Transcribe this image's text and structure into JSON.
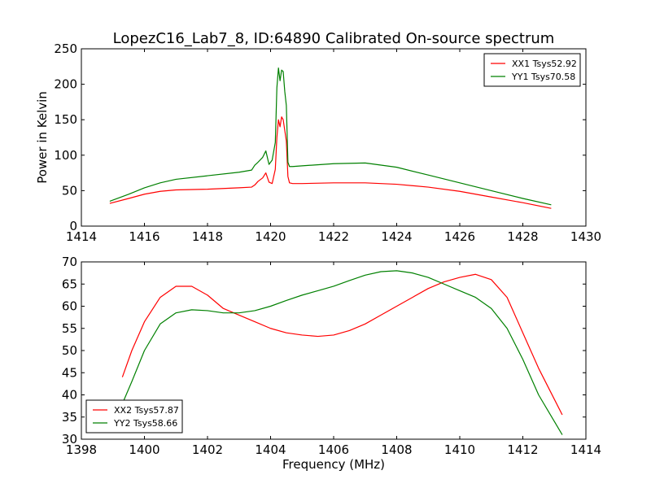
{
  "figure": {
    "title": "LopezC16_Lab7_8, ID:64890 Calibrated On-source spectrum",
    "ylabel": "Power in Kelvin",
    "xlabel": "Frequency (MHz)"
  },
  "colors": {
    "red": "#ff0000",
    "green": "#008000"
  },
  "chart_data": [
    {
      "type": "line",
      "xlim": [
        1414,
        1430
      ],
      "ylim": [
        0,
        250
      ],
      "xticks": [
        1414,
        1416,
        1418,
        1420,
        1422,
        1424,
        1426,
        1428,
        1430
      ],
      "yticks": [
        0,
        50,
        100,
        150,
        200,
        250
      ],
      "legend_position": "top-right",
      "series": [
        {
          "name": "XX1 Tsys52.92",
          "color": "#ff0000",
          "x": [
            1414.9,
            1415.5,
            1416.0,
            1416.5,
            1417.0,
            1418.0,
            1419.0,
            1419.4,
            1419.5,
            1419.6,
            1419.75,
            1419.85,
            1419.95,
            1420.05,
            1420.15,
            1420.2,
            1420.25,
            1420.3,
            1420.35,
            1420.4,
            1420.45,
            1420.5,
            1420.55,
            1420.6,
            1420.7,
            1421.0,
            1422.0,
            1423.0,
            1424.0,
            1425.0,
            1426.0,
            1427.0,
            1428.0,
            1428.9
          ],
          "y": [
            32,
            39,
            45,
            49,
            51,
            52,
            54,
            55,
            58,
            63,
            68,
            75,
            62,
            60,
            80,
            125,
            150,
            140,
            154,
            150,
            135,
            120,
            70,
            61,
            60,
            60,
            61,
            61,
            59,
            55,
            49,
            41,
            33,
            25
          ]
        },
        {
          "name": "YY1 Tsys70.58",
          "color": "#008000",
          "x": [
            1414.9,
            1415.5,
            1416.0,
            1416.5,
            1417.0,
            1418.0,
            1419.0,
            1419.4,
            1419.5,
            1419.6,
            1419.75,
            1419.85,
            1419.95,
            1420.05,
            1420.15,
            1420.2,
            1420.25,
            1420.3,
            1420.35,
            1420.4,
            1420.45,
            1420.5,
            1420.55,
            1420.6,
            1420.7,
            1421.0,
            1422.0,
            1423.0,
            1424.0,
            1425.0,
            1426.0,
            1427.0,
            1428.0,
            1428.9
          ],
          "y": [
            35,
            45,
            54,
            61,
            66,
            71,
            76,
            79,
            86,
            90,
            97,
            106,
            87,
            93,
            118,
            195,
            223,
            205,
            220,
            218,
            190,
            170,
            90,
            84,
            84,
            85,
            88,
            89,
            83,
            72,
            61,
            50,
            39,
            30
          ]
        }
      ]
    },
    {
      "type": "line",
      "xlim": [
        1398,
        1414
      ],
      "ylim": [
        30,
        70
      ],
      "xticks": [
        1398,
        1400,
        1402,
        1404,
        1406,
        1408,
        1410,
        1412,
        1414
      ],
      "yticks": [
        30,
        35,
        40,
        45,
        50,
        55,
        60,
        65,
        70
      ],
      "legend_position": "bottom-left",
      "series": [
        {
          "name": "XX2 Tsys57.87",
          "color": "#ff0000",
          "x": [
            1399.3,
            1399.6,
            1400.0,
            1400.5,
            1401.0,
            1401.5,
            1402.0,
            1402.5,
            1403.0,
            1403.5,
            1404.0,
            1404.5,
            1405.0,
            1405.5,
            1406.0,
            1406.5,
            1407.0,
            1407.5,
            1408.0,
            1408.5,
            1409.0,
            1409.5,
            1410.0,
            1410.5,
            1411.0,
            1411.5,
            1412.0,
            1412.5,
            1413.0,
            1413.25
          ],
          "y": [
            44,
            50,
            56.5,
            62,
            64.5,
            64.5,
            62.5,
            59.5,
            58,
            56.5,
            55,
            54,
            53.5,
            53.2,
            53.5,
            54.5,
            56,
            58,
            60,
            62,
            64,
            65.5,
            66.5,
            67.2,
            66,
            62,
            54,
            46,
            39,
            35.5
          ]
        },
        {
          "name": "YY2 Tsys58.66",
          "color": "#008000",
          "x": [
            1399.3,
            1399.6,
            1400.0,
            1400.5,
            1401.0,
            1401.5,
            1402.0,
            1402.5,
            1403.0,
            1403.5,
            1404.0,
            1404.5,
            1405.0,
            1405.5,
            1406.0,
            1406.5,
            1407.0,
            1407.5,
            1408.0,
            1408.5,
            1409.0,
            1409.5,
            1410.0,
            1410.5,
            1411.0,
            1411.5,
            1412.0,
            1412.5,
            1413.0,
            1413.25
          ],
          "y": [
            38,
            43,
            50,
            56,
            58.5,
            59.2,
            59,
            58.5,
            58.5,
            59,
            60,
            61.3,
            62.5,
            63.5,
            64.5,
            65.8,
            67,
            67.8,
            68,
            67.5,
            66.5,
            65,
            63.5,
            62,
            59.5,
            55,
            48,
            40,
            34,
            31
          ]
        }
      ]
    }
  ]
}
